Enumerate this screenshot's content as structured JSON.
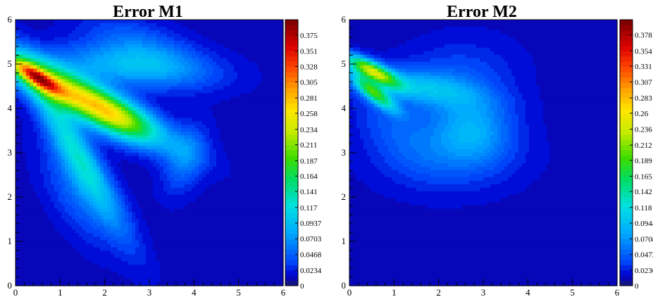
{
  "chart_data": [
    {
      "type": "heatmap",
      "title": "Error M1",
      "x_ticks": [
        "0",
        "1",
        "2",
        "3",
        "4",
        "5",
        "6"
      ],
      "y_ticks": [
        "0",
        "1",
        "2",
        "3",
        "4",
        "5",
        "6"
      ],
      "xlim": [
        0,
        6
      ],
      "ylim": [
        0,
        6
      ],
      "colorbar": {
        "range": [
          0,
          0.398
        ],
        "labels": [
          "0",
          "0.0234",
          "0.0468",
          "0.0703",
          "0.0937",
          "0.117",
          "0.141",
          "0.164",
          "0.187",
          "0.211",
          "0.234",
          "0.258",
          "0.281",
          "0.305",
          "0.328",
          "0.351",
          "0.375"
        ],
        "colormap": "rainbow"
      },
      "background_value": 0.012,
      "blobs": [
        {
          "x": 1.45,
          "y": 4.25,
          "peak": 0.24,
          "angle_deg": -27,
          "len": 1.3,
          "width": 0.28
        },
        {
          "x": 0.45,
          "y": 4.72,
          "peak": 0.17,
          "angle_deg": -33,
          "len": 0.45,
          "width": 0.12
        },
        {
          "x": 2.55,
          "y": 4.95,
          "peak": 0.075,
          "angle_deg": -5,
          "len": 1.2,
          "width": 0.32
        },
        {
          "x": 1.35,
          "y": 3.05,
          "peak": 0.1,
          "angle_deg": -60,
          "len": 1.4,
          "width": 0.25
        },
        {
          "x": 2.3,
          "y": 3.75,
          "peak": 0.065,
          "angle_deg": -25,
          "len": 0.6,
          "width": 0.3
        },
        {
          "x": 3.8,
          "y": 2.85,
          "peak": 0.04,
          "angle_deg": 70,
          "len": 0.55,
          "width": 0.3
        },
        {
          "x": 2.8,
          "y": 5.45,
          "peak": 0.035,
          "angle_deg": -20,
          "len": 0.9,
          "width": 0.35
        },
        {
          "x": 1.4,
          "y": 2.1,
          "peak": 0.035,
          "angle_deg": -60,
          "len": 0.9,
          "width": 0.4
        }
      ]
    },
    {
      "type": "heatmap",
      "title": "Error M2",
      "x_ticks": [
        "0",
        "1",
        "2",
        "3",
        "4",
        "5",
        "6"
      ],
      "y_ticks": [
        "0",
        "1",
        "2",
        "3",
        "4",
        "5",
        "6"
      ],
      "xlim": [
        0,
        6
      ],
      "ylim": [
        0,
        6
      ],
      "colorbar": {
        "range": [
          0,
          0.401
        ],
        "labels": [
          "0",
          "0.0236",
          "0.0472",
          "0.0708",
          "0.0944",
          "0.118",
          "0.142",
          "0.165",
          "0.189",
          "0.212",
          "0.236",
          "0.26",
          "0.283",
          "0.307",
          "0.331",
          "0.354",
          "0.378"
        ],
        "colormap": "rainbow"
      },
      "background_value": 0.012,
      "blobs": [
        {
          "x": 0.5,
          "y": 4.85,
          "peak": 0.2,
          "angle_deg": -28,
          "len": 0.45,
          "width": 0.13
        },
        {
          "x": 0.55,
          "y": 4.35,
          "peak": 0.15,
          "angle_deg": -38,
          "len": 0.4,
          "width": 0.12
        },
        {
          "x": 1.5,
          "y": 4.5,
          "peak": 0.065,
          "angle_deg": -10,
          "len": 1.0,
          "width": 0.25
        },
        {
          "x": 2.75,
          "y": 3.5,
          "peak": 0.06,
          "angle_deg": 0,
          "len": 0.6,
          "width": 0.5
        },
        {
          "x": 2.35,
          "y": 4.6,
          "peak": 0.03,
          "angle_deg": 10,
          "len": 0.9,
          "width": 0.6
        },
        {
          "x": 2.2,
          "y": 2.9,
          "peak": 0.028,
          "angle_deg": 0,
          "len": 1.1,
          "width": 0.55
        },
        {
          "x": 1.0,
          "y": 3.6,
          "peak": 0.025,
          "angle_deg": -45,
          "len": 0.8,
          "width": 0.45
        }
      ]
    }
  ]
}
